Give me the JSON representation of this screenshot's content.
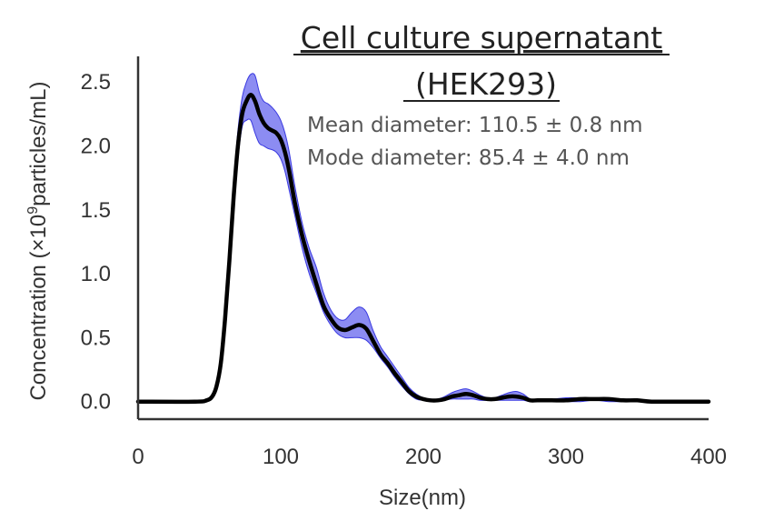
{
  "chart_data": {
    "type": "area",
    "title_lines": [
      "Cell culture supernatant",
      "(HEK293)"
    ],
    "annotations": [
      "Mean diameter: 110.5 ± 0.8 nm",
      "Mode diameter: 85.4 ± 4.0 nm"
    ],
    "xlabel": "Size(nm)",
    "ylabel_prefix": "Concentration (×10",
    "ylabel_exponent": "9",
    "ylabel_suffix": "particles/mL)",
    "xlim": [
      0,
      400
    ],
    "ylim": [
      -0.13,
      2.7
    ],
    "xticks": [
      0,
      100,
      200,
      300,
      400
    ],
    "yticks": [
      0.0,
      0.5,
      1.0,
      1.5,
      2.0,
      2.5
    ],
    "ytick_labels": [
      "0.0",
      "0.5",
      "1.0",
      "1.5",
      "2.0",
      "2.5"
    ],
    "grid": false,
    "series": [
      {
        "x": [
          0,
          40,
          48,
          52,
          55,
          58,
          61,
          64,
          67,
          70,
          73,
          76,
          79,
          82,
          85,
          88,
          91,
          94,
          97,
          100,
          103,
          106,
          110,
          115,
          120,
          125,
          130,
          135,
          140,
          145,
          150,
          155,
          160,
          165,
          170,
          175,
          180,
          185,
          190,
          195,
          200,
          205,
          210,
          215,
          220,
          225,
          230,
          235,
          240,
          245,
          250,
          255,
          260,
          265,
          270,
          275,
          280,
          290,
          300,
          310,
          320,
          330,
          340,
          350,
          360,
          380,
          400
        ],
        "mean": [
          0.0,
          0.0,
          0.01,
          0.04,
          0.12,
          0.3,
          0.65,
          1.1,
          1.6,
          2.0,
          2.25,
          2.35,
          2.4,
          2.35,
          2.25,
          2.18,
          2.14,
          2.12,
          2.1,
          2.05,
          1.95,
          1.8,
          1.55,
          1.3,
          1.1,
          0.92,
          0.75,
          0.65,
          0.58,
          0.56,
          0.58,
          0.6,
          0.57,
          0.47,
          0.37,
          0.3,
          0.22,
          0.15,
          0.08,
          0.04,
          0.02,
          0.01,
          0.01,
          0.02,
          0.04,
          0.05,
          0.06,
          0.05,
          0.03,
          0.02,
          0.02,
          0.03,
          0.04,
          0.04,
          0.03,
          0.01,
          0.01,
          0.01,
          0.01,
          0.02,
          0.02,
          0.02,
          0.01,
          0.01,
          0.0,
          0.0,
          0.0
        ],
        "lower": [
          0.0,
          0.0,
          0.0,
          0.03,
          0.1,
          0.26,
          0.58,
          1.0,
          1.5,
          1.9,
          2.15,
          2.2,
          2.2,
          2.1,
          2.02,
          2.0,
          1.98,
          1.97,
          1.95,
          1.9,
          1.8,
          1.65,
          1.45,
          1.2,
          1.0,
          0.85,
          0.7,
          0.6,
          0.53,
          0.5,
          0.5,
          0.5,
          0.48,
          0.42,
          0.34,
          0.27,
          0.19,
          0.12,
          0.06,
          0.02,
          0.01,
          0.0,
          0.0,
          0.01,
          0.02,
          0.02,
          0.02,
          0.02,
          0.01,
          0.01,
          0.01,
          0.01,
          0.01,
          0.01,
          0.01,
          0.0,
          0.0,
          0.0,
          0.0,
          0.0,
          0.01,
          0.0,
          0.0,
          0.0,
          0.0,
          0.0,
          0.0
        ],
        "upper": [
          0.0,
          0.0,
          0.02,
          0.05,
          0.14,
          0.34,
          0.72,
          1.2,
          1.7,
          2.12,
          2.38,
          2.5,
          2.56,
          2.55,
          2.42,
          2.35,
          2.33,
          2.3,
          2.26,
          2.2,
          2.1,
          1.95,
          1.68,
          1.4,
          1.2,
          1.05,
          0.85,
          0.72,
          0.65,
          0.64,
          0.7,
          0.74,
          0.7,
          0.55,
          0.43,
          0.35,
          0.27,
          0.19,
          0.11,
          0.06,
          0.03,
          0.02,
          0.02,
          0.04,
          0.07,
          0.09,
          0.1,
          0.08,
          0.05,
          0.03,
          0.03,
          0.05,
          0.07,
          0.08,
          0.06,
          0.02,
          0.02,
          0.02,
          0.03,
          0.03,
          0.03,
          0.03,
          0.02,
          0.02,
          0.01,
          0.0,
          0.0
        ]
      }
    ],
    "colors": {
      "band_fill": "#6666ee",
      "band_edge": "#3a3ae0",
      "mean_line": "#000000",
      "axis": "#333333",
      "text": "#333333",
      "title": "#222222",
      "annotation": "#555555"
    }
  }
}
